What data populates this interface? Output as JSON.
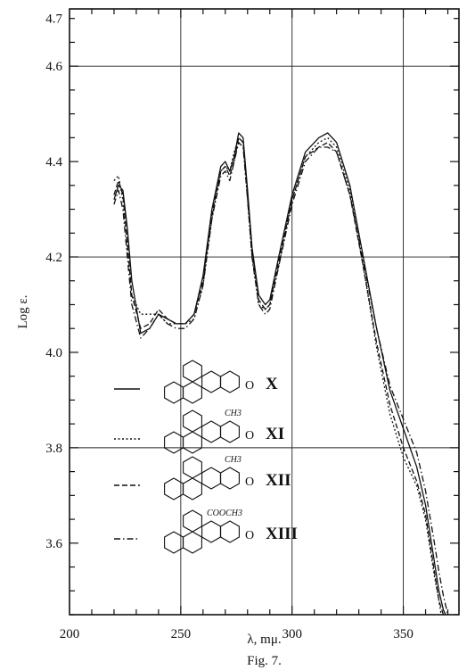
{
  "chart_data": {
    "type": "line",
    "title": "",
    "xlabel": "λ, mμ.",
    "ylabel": "Log ε.",
    "caption": "Fig. 7.",
    "xlim": [
      200,
      375
    ],
    "ylim": [
      3.45,
      4.72
    ],
    "x_ticks": [
      200,
      250,
      300,
      350
    ],
    "y_ticks": [
      3.6,
      3.8,
      4.0,
      4.2,
      4.4,
      4.6,
      4.7
    ],
    "y_tick_labels": [
      "3.6",
      "3.8",
      "4.0",
      "4.2",
      "4.4",
      "4.6",
      "4.7"
    ],
    "grid": "major lines at x=250, 300, 350 and y=4.2, 4.6, 3.8",
    "series": [
      {
        "name": "X",
        "style": "solid",
        "color": "#111111",
        "x": [
          220,
          222,
          224,
          226,
          228,
          232,
          236,
          240,
          244,
          248,
          252,
          256,
          260,
          264,
          268,
          270,
          272,
          274,
          276,
          278,
          280,
          282,
          285,
          288,
          290,
          294,
          300,
          306,
          312,
          316,
          320,
          326,
          332,
          338,
          344,
          350,
          356,
          360,
          364,
          366,
          368,
          369
        ],
        "y": [
          4.32,
          4.35,
          4.34,
          4.26,
          4.15,
          4.04,
          4.05,
          4.08,
          4.07,
          4.06,
          4.06,
          4.08,
          4.16,
          4.3,
          4.39,
          4.4,
          4.38,
          4.41,
          4.46,
          4.45,
          4.34,
          4.22,
          4.12,
          4.1,
          4.11,
          4.2,
          4.33,
          4.42,
          4.45,
          4.46,
          4.44,
          4.35,
          4.2,
          4.05,
          3.92,
          3.84,
          3.76,
          3.68,
          3.56,
          3.5,
          3.46,
          3.45
        ]
      },
      {
        "name": "XI",
        "style": "dotted",
        "color": "#111111",
        "x": [
          220,
          222,
          224,
          226,
          228,
          232,
          236,
          240,
          244,
          248,
          252,
          256,
          260,
          264,
          268,
          270,
          272,
          274,
          276,
          278,
          280,
          282,
          285,
          288,
          290,
          294,
          300,
          306,
          312,
          316,
          320,
          326,
          332,
          338,
          344,
          350,
          356,
          360,
          364,
          366,
          367
        ],
        "y": [
          4.36,
          4.37,
          4.32,
          4.22,
          4.12,
          4.08,
          4.08,
          4.08,
          4.06,
          4.06,
          4.06,
          4.07,
          4.14,
          4.28,
          4.38,
          4.39,
          4.38,
          4.42,
          4.45,
          4.44,
          4.32,
          4.2,
          4.1,
          4.09,
          4.1,
          4.18,
          4.32,
          4.41,
          4.44,
          4.45,
          4.43,
          4.34,
          4.18,
          4.01,
          3.87,
          3.78,
          3.72,
          3.65,
          3.53,
          3.48,
          3.45
        ]
      },
      {
        "name": "XII",
        "style": "dashed",
        "color": "#111111",
        "x": [
          220,
          222,
          224,
          226,
          228,
          232,
          236,
          240,
          244,
          248,
          252,
          256,
          260,
          264,
          268,
          270,
          272,
          274,
          276,
          278,
          280,
          282,
          285,
          288,
          290,
          294,
          300,
          306,
          312,
          316,
          320,
          326,
          332,
          338,
          344,
          350,
          356,
          360,
          364,
          366,
          368
        ],
        "y": [
          4.33,
          4.36,
          4.33,
          4.23,
          4.12,
          4.05,
          4.06,
          4.09,
          4.07,
          4.06,
          4.06,
          4.08,
          4.15,
          4.29,
          4.38,
          4.39,
          4.37,
          4.4,
          4.45,
          4.44,
          4.33,
          4.21,
          4.11,
          4.09,
          4.1,
          4.19,
          4.32,
          4.41,
          4.43,
          4.44,
          4.42,
          4.33,
          4.18,
          4.02,
          3.89,
          3.8,
          3.73,
          3.66,
          3.54,
          3.48,
          3.45
        ]
      },
      {
        "name": "XIII",
        "style": "dash-dot",
        "color": "#111111",
        "x": [
          220,
          222,
          224,
          226,
          228,
          232,
          236,
          240,
          244,
          248,
          252,
          256,
          260,
          264,
          268,
          270,
          272,
          274,
          276,
          278,
          280,
          282,
          285,
          288,
          290,
          294,
          300,
          306,
          312,
          316,
          320,
          326,
          332,
          338,
          344,
          350,
          356,
          360,
          364,
          366,
          368,
          370
        ],
        "y": [
          4.31,
          4.34,
          4.3,
          4.2,
          4.1,
          4.03,
          4.05,
          4.08,
          4.06,
          4.05,
          4.05,
          4.07,
          4.14,
          4.28,
          4.37,
          4.38,
          4.36,
          4.4,
          4.44,
          4.43,
          4.32,
          4.2,
          4.1,
          4.08,
          4.09,
          4.18,
          4.31,
          4.4,
          4.43,
          4.43,
          4.42,
          4.33,
          4.19,
          4.05,
          3.93,
          3.86,
          3.79,
          3.71,
          3.6,
          3.54,
          3.49,
          3.45
        ]
      }
    ],
    "legend": {
      "placement": "lower-left",
      "entries": [
        {
          "label": "X",
          "style": "solid",
          "substituent": ""
        },
        {
          "label": "XI",
          "style": "dotted",
          "substituent": "CH3"
        },
        {
          "label": "XII",
          "style": "dashed",
          "substituent": "CH3"
        },
        {
          "label": "XIII",
          "style": "dash-dot",
          "substituent": "COOCH3"
        }
      ]
    }
  }
}
